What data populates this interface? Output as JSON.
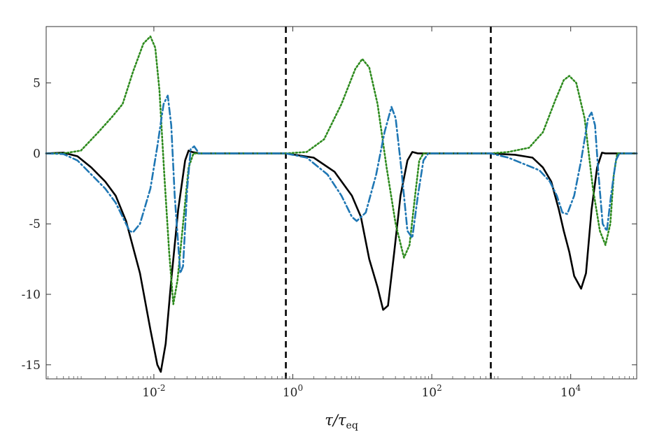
{
  "chart_data": {
    "type": "line",
    "title": "",
    "xlabel": {
      "main": "τ/τ",
      "sub": "eq"
    },
    "ylabel": "",
    "xscale": "log",
    "xlim_log10": [
      -3.55,
      4.95
    ],
    "ylim": [
      -16,
      9
    ],
    "yticks": [
      {
        "value": 5,
        "label": "5"
      },
      {
        "value": 0,
        "label": "0"
      },
      {
        "value": -5,
        "label": "-5"
      },
      {
        "value": -10,
        "label": "-10"
      },
      {
        "value": -15,
        "label": "-15"
      }
    ],
    "xticks": [
      {
        "value_log10": -2,
        "base": "10",
        "exp": "-2"
      },
      {
        "value_log10": 0,
        "base": "10",
        "exp": "0"
      },
      {
        "value_log10": 2,
        "base": "10",
        "exp": "2"
      },
      {
        "value_log10": 4,
        "base": "10",
        "exp": "4"
      }
    ],
    "vlines_log10": [
      -0.1,
      2.85
    ],
    "grid": false,
    "legend": "none",
    "series": [
      {
        "style": "solid",
        "color": "#000000",
        "points": [
          [
            -3.55,
            0
          ],
          [
            -3.3,
            0.05
          ],
          [
            -3.1,
            -0.2
          ],
          [
            -2.9,
            -1.0
          ],
          [
            -2.7,
            -2.0
          ],
          [
            -2.55,
            -3.0
          ],
          [
            -2.4,
            -4.8
          ],
          [
            -2.2,
            -8.5
          ],
          [
            -2.05,
            -12.5
          ],
          [
            -1.95,
            -15.0
          ],
          [
            -1.9,
            -15.5
          ],
          [
            -1.83,
            -13.5
          ],
          [
            -1.75,
            -9.0
          ],
          [
            -1.65,
            -4.0
          ],
          [
            -1.55,
            -0.5
          ],
          [
            -1.5,
            0.2
          ],
          [
            -1.45,
            0.1
          ],
          [
            -1.35,
            0
          ],
          [
            -0.1,
            0
          ],
          [
            0.3,
            -0.3
          ],
          [
            0.6,
            -1.3
          ],
          [
            0.85,
            -3.0
          ],
          [
            0.98,
            -4.5
          ],
          [
            1.1,
            -7.5
          ],
          [
            1.22,
            -9.5
          ],
          [
            1.3,
            -11.1
          ],
          [
            1.37,
            -10.8
          ],
          [
            1.46,
            -7.0
          ],
          [
            1.55,
            -3.0
          ],
          [
            1.65,
            -0.5
          ],
          [
            1.72,
            0.1
          ],
          [
            1.8,
            0
          ],
          [
            2.85,
            0
          ],
          [
            3.2,
            -0.1
          ],
          [
            3.45,
            -0.3
          ],
          [
            3.6,
            -1.0
          ],
          [
            3.72,
            -2.0
          ],
          [
            3.83,
            -4.0
          ],
          [
            3.9,
            -5.5
          ],
          [
            3.98,
            -7.0
          ],
          [
            4.05,
            -8.7
          ],
          [
            4.15,
            -9.6
          ],
          [
            4.22,
            -8.5
          ],
          [
            4.3,
            -4.0
          ],
          [
            4.38,
            -1.0
          ],
          [
            4.45,
            0.05
          ],
          [
            4.5,
            0
          ],
          [
            4.95,
            0
          ]
        ]
      },
      {
        "style": "dotted",
        "color": "#2e8b1e",
        "points": [
          [
            -3.55,
            0
          ],
          [
            -3.3,
            0
          ],
          [
            -3.05,
            0.2
          ],
          [
            -2.8,
            1.5
          ],
          [
            -2.6,
            2.6
          ],
          [
            -2.45,
            3.5
          ],
          [
            -2.3,
            5.8
          ],
          [
            -2.15,
            7.8
          ],
          [
            -2.05,
            8.3
          ],
          [
            -1.98,
            7.5
          ],
          [
            -1.92,
            4.5
          ],
          [
            -1.85,
            -1.5
          ],
          [
            -1.78,
            -7.0
          ],
          [
            -1.72,
            -10.7
          ],
          [
            -1.66,
            -9.0
          ],
          [
            -1.58,
            -5.0
          ],
          [
            -1.5,
            -1.0
          ],
          [
            -1.43,
            0
          ],
          [
            -0.1,
            0
          ],
          [
            0.2,
            0.1
          ],
          [
            0.45,
            1.0
          ],
          [
            0.7,
            3.5
          ],
          [
            0.9,
            6.0
          ],
          [
            1.0,
            6.7
          ],
          [
            1.1,
            6.1
          ],
          [
            1.22,
            3.5
          ],
          [
            1.35,
            -1.0
          ],
          [
            1.48,
            -5.0
          ],
          [
            1.6,
            -7.4
          ],
          [
            1.68,
            -6.5
          ],
          [
            1.76,
            -3.0
          ],
          [
            1.82,
            -0.5
          ],
          [
            1.88,
            0
          ],
          [
            2.85,
            0
          ],
          [
            3.1,
            0.1
          ],
          [
            3.4,
            0.4
          ],
          [
            3.6,
            1.5
          ],
          [
            3.78,
            3.8
          ],
          [
            3.9,
            5.2
          ],
          [
            3.98,
            5.5
          ],
          [
            4.08,
            5.0
          ],
          [
            4.2,
            2.5
          ],
          [
            4.32,
            -2.5
          ],
          [
            4.42,
            -5.5
          ],
          [
            4.5,
            -6.5
          ],
          [
            4.57,
            -5.0
          ],
          [
            4.62,
            -1.5
          ],
          [
            4.67,
            0
          ],
          [
            4.95,
            0
          ]
        ]
      },
      {
        "style": "dashdot",
        "color": "#1f77b4",
        "points": [
          [
            -3.55,
            0
          ],
          [
            -3.3,
            -0.05
          ],
          [
            -3.1,
            -0.5
          ],
          [
            -2.9,
            -1.5
          ],
          [
            -2.7,
            -2.5
          ],
          [
            -2.55,
            -3.5
          ],
          [
            -2.45,
            -4.5
          ],
          [
            -2.35,
            -5.5
          ],
          [
            -2.3,
            -5.6
          ],
          [
            -2.2,
            -5.0
          ],
          [
            -2.05,
            -2.5
          ],
          [
            -1.95,
            0.5
          ],
          [
            -1.86,
            3.5
          ],
          [
            -1.8,
            4.1
          ],
          [
            -1.75,
            2.0
          ],
          [
            -1.7,
            -3.0
          ],
          [
            -1.62,
            -8.5
          ],
          [
            -1.58,
            -8.0
          ],
          [
            -1.52,
            -2.5
          ],
          [
            -1.47,
            0.3
          ],
          [
            -1.42,
            0.5
          ],
          [
            -1.35,
            0
          ],
          [
            -0.1,
            0
          ],
          [
            0.2,
            -0.3
          ],
          [
            0.5,
            -1.5
          ],
          [
            0.7,
            -3.0
          ],
          [
            0.85,
            -4.5
          ],
          [
            0.92,
            -4.8
          ],
          [
            1.05,
            -4.2
          ],
          [
            1.2,
            -1.5
          ],
          [
            1.32,
            1.5
          ],
          [
            1.42,
            3.3
          ],
          [
            1.48,
            2.5
          ],
          [
            1.56,
            -1.0
          ],
          [
            1.65,
            -5.5
          ],
          [
            1.72,
            -6.0
          ],
          [
            1.8,
            -3.0
          ],
          [
            1.88,
            -0.5
          ],
          [
            1.95,
            0
          ],
          [
            2.85,
            0
          ],
          [
            3.1,
            -0.3
          ],
          [
            3.35,
            -0.8
          ],
          [
            3.55,
            -1.2
          ],
          [
            3.7,
            -2.0
          ],
          [
            3.8,
            -3.0
          ],
          [
            3.88,
            -4.2
          ],
          [
            3.95,
            -4.3
          ],
          [
            4.05,
            -3.0
          ],
          [
            4.15,
            -0.5
          ],
          [
            4.25,
            2.5
          ],
          [
            4.3,
            2.9
          ],
          [
            4.35,
            2.0
          ],
          [
            4.4,
            -1.5
          ],
          [
            4.46,
            -5.0
          ],
          [
            4.52,
            -5.5
          ],
          [
            4.58,
            -3.0
          ],
          [
            4.65,
            -0.5
          ],
          [
            4.7,
            0
          ],
          [
            4.95,
            0
          ]
        ]
      }
    ]
  }
}
